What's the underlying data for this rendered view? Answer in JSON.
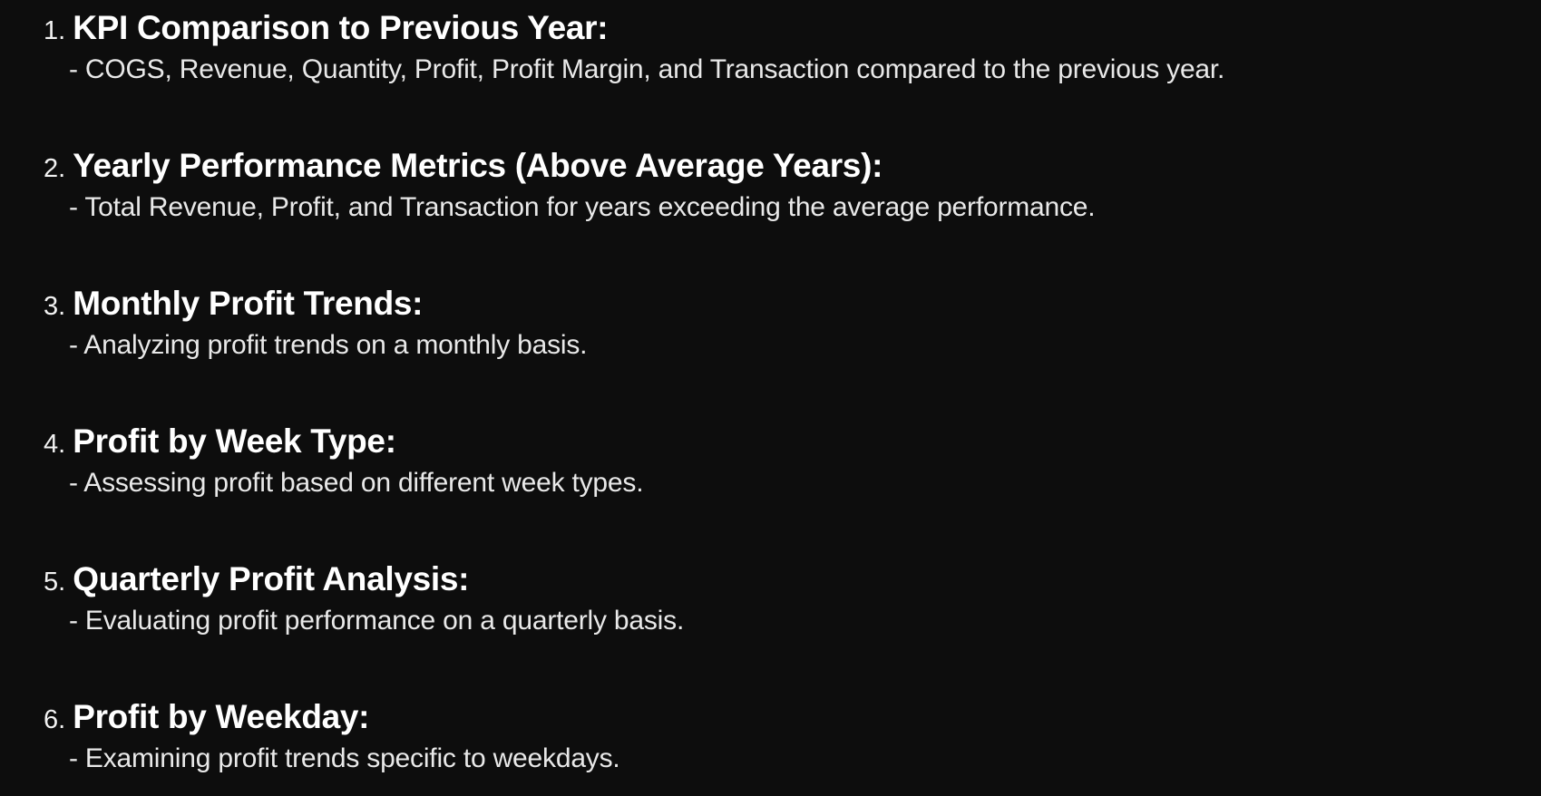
{
  "items": [
    {
      "number": "1.",
      "title": "KPI Comparison to Previous Year:",
      "description": "- COGS, Revenue, Quantity, Profit, Profit Margin, and Transaction compared to the previous year."
    },
    {
      "number": "2.",
      "title": "Yearly Performance Metrics (Above Average Years):",
      "description": "- Total Revenue, Profit, and Transaction for years exceeding the average performance."
    },
    {
      "number": "3.",
      "title": "Monthly Profit Trends:",
      "description": "- Analyzing profit trends on a monthly basis."
    },
    {
      "number": "4.",
      "title": "Profit by Week Type:",
      "description": "- Assessing profit based on different week types."
    },
    {
      "number": "5.",
      "title": "Quarterly Profit Analysis:",
      "description": "- Evaluating profit performance on a quarterly basis."
    },
    {
      "number": "6.",
      "title": "Profit by Weekday:",
      "description": "- Examining profit trends specific to weekdays."
    }
  ]
}
